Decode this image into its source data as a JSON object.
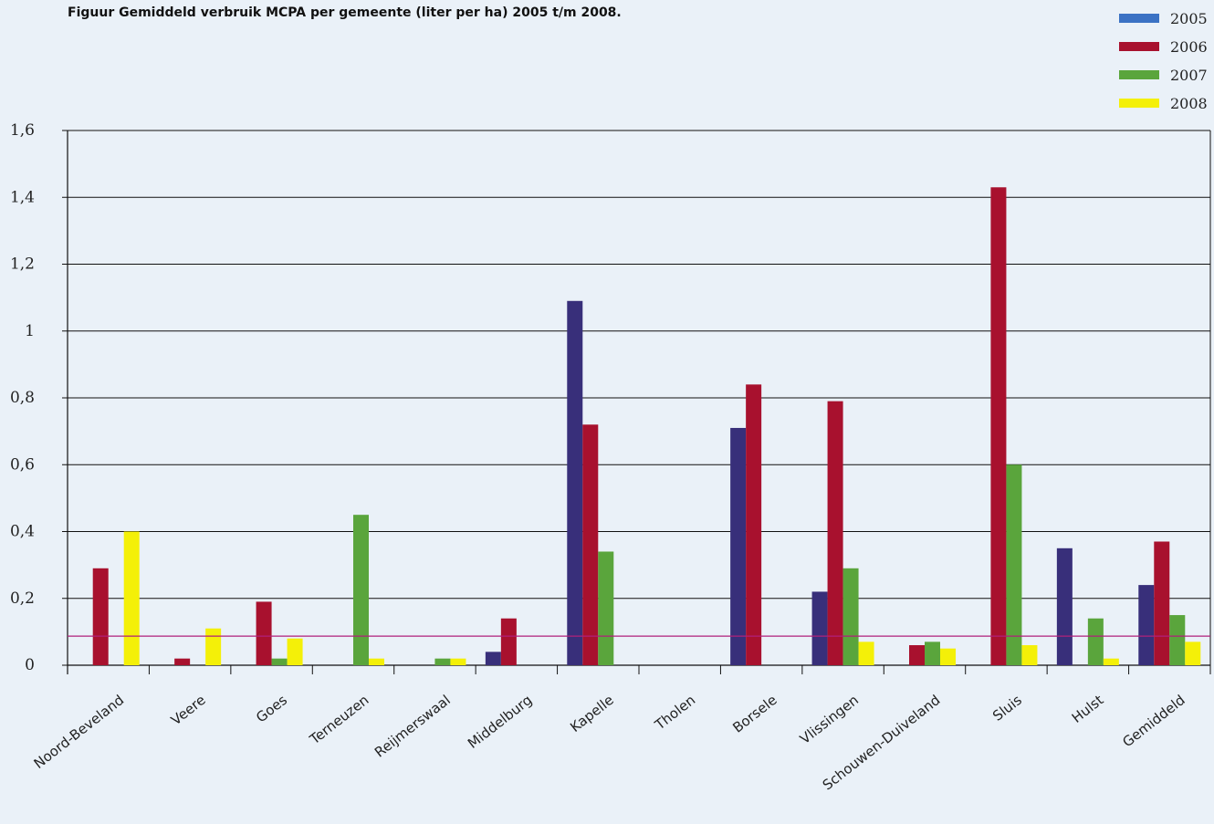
{
  "chart_data": {
    "type": "bar",
    "title": "Figuur  Gemiddeld verbruik MCPA per gemeente (liter per ha) 2005 t/m 2008.",
    "xlabel": "",
    "ylabel": "",
    "ylim": [
      0,
      1.6
    ],
    "yticks": [
      {
        "value": 0,
        "label": "0"
      },
      {
        "value": 0.2,
        "label": "0,2"
      },
      {
        "value": 0.4,
        "label": "0,4"
      },
      {
        "value": 0.6,
        "label": "0,6"
      },
      {
        "value": 0.8,
        "label": "0,8"
      },
      {
        "value": 1.0,
        "label": "1"
      },
      {
        "value": 1.2,
        "label": "1,2"
      },
      {
        "value": 1.4,
        "label": "1,4"
      },
      {
        "value": 1.6,
        "label": "1,6"
      }
    ],
    "grid": true,
    "legend_position": "top-right",
    "categories": [
      "Noord-Beveland",
      "Veere",
      "Goes",
      "Terneuzen",
      "Reijmerswaal",
      "Middelburg",
      "Kapelle",
      "Tholen",
      "Borsele",
      "Vlissingen",
      "Schouwen-Duiveland",
      "Sluis",
      "Hulst",
      "Gemiddeld"
    ],
    "series": [
      {
        "name": "2005",
        "color": "#382f7a",
        "legend_color": "#3b72c4",
        "values": [
          0,
          0,
          0,
          0,
          0,
          0.04,
          1.09,
          0,
          0.71,
          0.22,
          0,
          0,
          0.35,
          0.24
        ]
      },
      {
        "name": "2006",
        "color": "#a8112e",
        "values": [
          0.29,
          0.02,
          0.19,
          0,
          0,
          0.14,
          0.72,
          0,
          0.84,
          0.79,
          0.06,
          1.43,
          0,
          0.37
        ]
      },
      {
        "name": "2007",
        "color": "#5aa53c",
        "values": [
          0,
          0,
          0.02,
          0.45,
          0.02,
          0,
          0.34,
          0,
          0,
          0.29,
          0.07,
          0.6,
          0.14,
          0.15
        ]
      },
      {
        "name": "2008",
        "color": "#f4f008",
        "values": [
          0.4,
          0.11,
          0.08,
          0.02,
          0.02,
          0,
          0,
          0,
          0,
          0.07,
          0.05,
          0.06,
          0.02,
          0.07
        ]
      }
    ],
    "reference_line": {
      "value": 0.087,
      "color": "#b0207a"
    }
  }
}
